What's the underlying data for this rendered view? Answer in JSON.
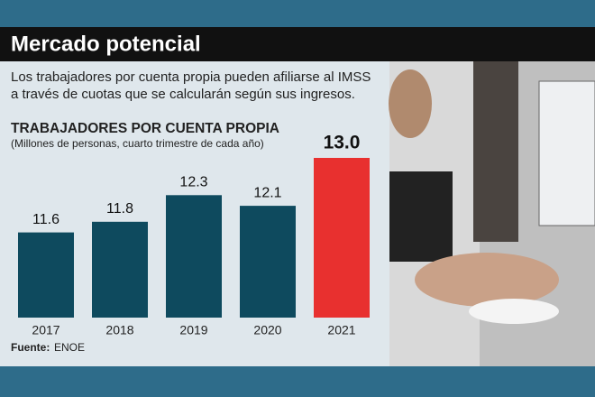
{
  "header": {
    "title": "Mercado potencial",
    "description": [
      "Los trabajadores por cuenta propia pueden afiliarse al IMSS",
      "a través de cuotas que se calcularán según sus ingresos."
    ]
  },
  "chart_data": {
    "type": "bar",
    "title": "TRABAJADORES POR CUENTA PROPIA",
    "subtitle": "(Millones de personas, cuarto trimestre de cada año)",
    "categories": [
      "2017",
      "2018",
      "2019",
      "2020",
      "2021"
    ],
    "values": [
      11.6,
      11.8,
      12.3,
      12.1,
      13.0
    ],
    "value_labels": [
      "11.6",
      "11.8",
      "12.3",
      "12.1",
      "13.0"
    ],
    "colors": [
      "#0e4a5e",
      "#0e4a5e",
      "#0e4a5e",
      "#0e4a5e",
      "#e8302f"
    ],
    "ylim": [
      10,
      13
    ],
    "source_label": "Fuente:",
    "source": "ENOE"
  }
}
